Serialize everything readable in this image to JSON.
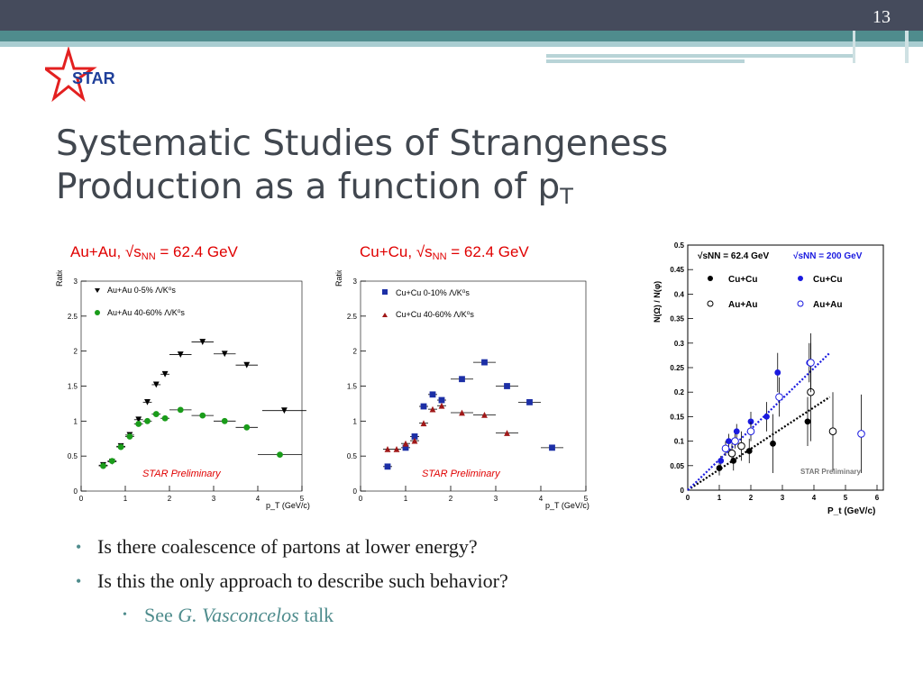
{
  "slide": {
    "number": "13",
    "logo_text": "STAR",
    "title_line1": "Systematic Studies of Strangeness",
    "title_line2_main": "Production as a function of p",
    "title_line2_sub": "T",
    "accent_color": "#4f8c8d",
    "bar_color": "#454b5c"
  },
  "panel_titles": {
    "auau_prefix": "Au+Au, √s",
    "auau_sub": "NN",
    "auau_suffix": " = 62.4 GeV",
    "cucu_prefix": "Cu+Cu, √s",
    "cucu_sub": "NN",
    "cucu_suffix": " = 62.4 GeV"
  },
  "bullets": [
    "Is there coalescence of partons at lower energy?",
    "Is this the only approach to describe such behavior?"
  ],
  "sub_bullet": {
    "see": "See",
    "author": "G. Vasconcelos",
    "talk": "talk"
  },
  "chart_data": [
    {
      "type": "scatter",
      "ylabel": "Ratio",
      "xlabel": "p_T (GeV/c)",
      "xlim": [
        0,
        5
      ],
      "ylim": [
        0,
        3
      ],
      "xticks": [
        0,
        1,
        2,
        3,
        4,
        5
      ],
      "yticks": [
        0,
        0.5,
        1,
        1.5,
        2,
        2.5,
        3
      ],
      "annotation": "STAR Preliminary",
      "legend_placement": "top-left",
      "series": [
        {
          "name": "Au+Au 0-5% Λ/K⁰s",
          "marker": "triangle-down",
          "color": "#000000",
          "x": [
            0.5,
            0.7,
            0.9,
            1.1,
            1.3,
            1.5,
            1.7,
            1.9,
            2.25,
            2.75,
            3.25,
            3.75,
            4.6
          ],
          "y": [
            0.37,
            0.42,
            0.64,
            0.8,
            1.02,
            1.27,
            1.52,
            1.67,
            1.95,
            2.13,
            1.96,
            1.8,
            1.15
          ],
          "xerr": [
            0.1,
            0.1,
            0.1,
            0.1,
            0.1,
            0.1,
            0.1,
            0.1,
            0.25,
            0.25,
            0.25,
            0.25,
            0.5
          ]
        },
        {
          "name": "Au+Au 40-60% Λ/K⁰s",
          "marker": "circle",
          "color": "#1a9c1a",
          "x": [
            0.5,
            0.7,
            0.9,
            1.1,
            1.3,
            1.5,
            1.7,
            1.9,
            2.25,
            2.75,
            3.25,
            3.75,
            4.5
          ],
          "y": [
            0.36,
            0.43,
            0.63,
            0.78,
            0.96,
            1.0,
            1.1,
            1.04,
            1.16,
            1.08,
            1.0,
            0.91,
            0.52
          ],
          "xerr": [
            0.1,
            0.1,
            0.1,
            0.1,
            0.1,
            0.1,
            0.1,
            0.1,
            0.25,
            0.25,
            0.25,
            0.25,
            0.5
          ]
        }
      ]
    },
    {
      "type": "scatter",
      "ylabel": "Ratio",
      "xlabel": "p_T (GeV/c)",
      "xlim": [
        0,
        5
      ],
      "ylim": [
        0,
        3
      ],
      "xticks": [
        0,
        1,
        2,
        3,
        4,
        5
      ],
      "yticks": [
        0,
        0.5,
        1,
        1.5,
        2,
        2.5,
        3
      ],
      "annotation": "STAR Preliminary",
      "legend_placement": "top-left",
      "series": [
        {
          "name": "Cu+Cu 0-10% Λ/K⁰s",
          "marker": "square",
          "color": "#1c2fa6",
          "x": [
            0.6,
            1.0,
            1.2,
            1.4,
            1.6,
            1.8,
            2.25,
            2.75,
            3.25,
            3.75,
            4.25
          ],
          "y": [
            0.35,
            0.62,
            0.78,
            1.21,
            1.38,
            1.3,
            1.6,
            1.84,
            1.5,
            1.27,
            0.62
          ],
          "xerr": [
            0.1,
            0.1,
            0.1,
            0.1,
            0.1,
            0.1,
            0.25,
            0.25,
            0.25,
            0.25,
            0.25
          ]
        },
        {
          "name": "Cu+Cu 40-60% Λ/K⁰s",
          "marker": "triangle-up",
          "color": "#a01818",
          "x": [
            0.6,
            0.8,
            1.0,
            1.2,
            1.4,
            1.6,
            1.8,
            2.25,
            2.75,
            3.25
          ],
          "y": [
            0.6,
            0.6,
            0.68,
            0.72,
            0.97,
            1.17,
            1.22,
            1.12,
            1.09,
            0.83
          ],
          "xerr": [
            0.1,
            0.1,
            0.1,
            0.1,
            0.1,
            0.1,
            0.1,
            0.25,
            0.25,
            0.25
          ]
        }
      ]
    },
    {
      "type": "scatter",
      "ylabel": "N(Ω) / N(φ)",
      "xlabel": "P_t (GeV/c)",
      "xlim": [
        0,
        6.2
      ],
      "ylim": [
        0,
        0.5
      ],
      "xticks": [
        0,
        1,
        2,
        3,
        4,
        5,
        6
      ],
      "yticks": [
        0,
        0.05,
        0.1,
        0.15,
        0.2,
        0.25,
        0.3,
        0.35,
        0.4,
        0.45,
        0.5
      ],
      "annotation": "STAR Preliminary",
      "legend": {
        "header1": "√sNN = 62.4 GeV",
        "header2": "√sNN = 200 GeV",
        "rows": [
          "Cu+Cu",
          "Au+Au"
        ]
      },
      "series": [
        {
          "name": "Cu+Cu 62.4 GeV",
          "marker": "circle",
          "color": "#000000",
          "x": [
            1.0,
            1.45,
            1.95,
            2.7,
            3.8
          ],
          "y": [
            0.045,
            0.06,
            0.08,
            0.095,
            0.14
          ],
          "yerr": [
            0.015,
            0.02,
            0.025,
            0.06,
            0.05
          ]
        },
        {
          "name": "Cu+Cu 200 GeV",
          "marker": "circle",
          "color": "#1a1ae0",
          "x": [
            1.05,
            1.3,
            1.55,
            2.0,
            2.5,
            2.85,
            3.85
          ],
          "y": [
            0.06,
            0.1,
            0.12,
            0.14,
            0.15,
            0.24,
            0.26
          ],
          "yerr": [
            0.01,
            0.015,
            0.015,
            0.02,
            0.03,
            0.04,
            0.04
          ]
        },
        {
          "name": "Au+Au 62.4 GeV",
          "marker": "circle-open",
          "color": "#000000",
          "x": [
            1.4,
            1.7,
            3.9,
            4.6
          ],
          "y": [
            0.075,
            0.09,
            0.2,
            0.12
          ],
          "yerr": [
            0.02,
            0.03,
            0.1,
            0.08
          ]
        },
        {
          "name": "Au+Au 200 GeV",
          "marker": "circle-open",
          "color": "#1a1ae0",
          "x": [
            1.2,
            1.5,
            2.0,
            2.9,
            3.9,
            5.5
          ],
          "y": [
            0.085,
            0.1,
            0.12,
            0.19,
            0.26,
            0.115
          ],
          "yerr": [
            0.015,
            0.015,
            0.02,
            0.04,
            0.06,
            0.08
          ]
        }
      ],
      "fits": [
        {
          "color": "#000000",
          "x": [
            0,
            4.5
          ],
          "y": [
            0,
            0.19
          ]
        },
        {
          "color": "#1a1ae0",
          "x": [
            0,
            4.5
          ],
          "y": [
            0,
            0.28
          ]
        }
      ]
    }
  ]
}
